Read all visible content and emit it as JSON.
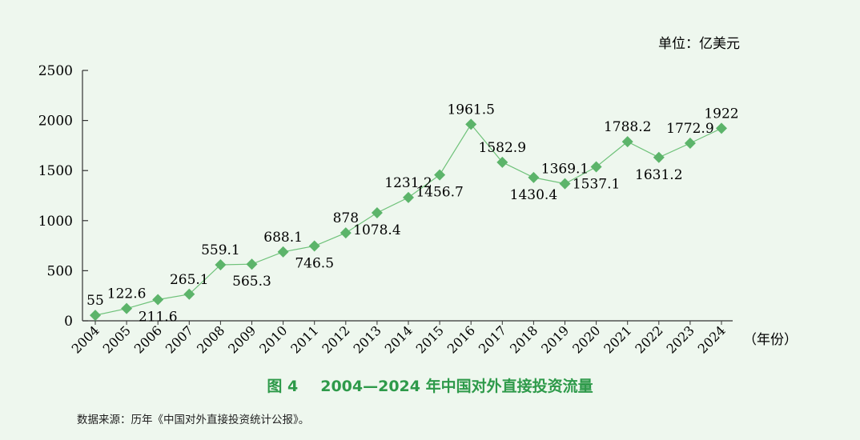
{
  "caption": {
    "figure_number": "图 4",
    "title": "2004—2024 年中国对外直接投资流量"
  },
  "source": "数据来源：历年《中国对外直接投资统计公报》。",
  "chart_data": {
    "type": "line",
    "unit_label": "单位：亿美元",
    "x_axis_unit": "（年份）",
    "categories": [
      "2004",
      "2005",
      "2006",
      "2007",
      "2008",
      "2009",
      "2010",
      "2011",
      "2012",
      "2013",
      "2014",
      "2015",
      "2016",
      "2017",
      "2018",
      "2019",
      "2020",
      "2021",
      "2022",
      "2023",
      "2024"
    ],
    "values": [
      55,
      122.6,
      211.6,
      265.1,
      559.1,
      565.3,
      688.1,
      746.5,
      878,
      1078.4,
      1231.2,
      1456.7,
      1961.5,
      1582.9,
      1430.4,
      1369.1,
      1537.1,
      1788.2,
      1631.2,
      1772.9,
      1922
    ],
    "data_labels": [
      "55",
      "122.6",
      "211.6",
      "265.1",
      "559.1",
      "565.3",
      "688.1",
      "746.5",
      "878",
      "1078.4",
      "1231.2",
      "1456.7",
      "1961.5",
      "1582.9",
      "1430.4",
      "1369.1",
      "1537.1",
      "1788.2",
      "1631.2",
      "1772.9",
      "1922"
    ],
    "label_positions": [
      "above",
      "above",
      "below",
      "above",
      "above",
      "below",
      "above",
      "below",
      "above",
      "below",
      "above",
      "below",
      "above",
      "above",
      "below",
      "above",
      "below",
      "above",
      "below",
      "above",
      "above"
    ],
    "y_ticks": [
      0,
      500,
      1000,
      1500,
      2000,
      2500
    ],
    "ylim": [
      0,
      2500
    ],
    "grid": false,
    "colors": {
      "line": "#6fc27a",
      "marker": "#5cb46a",
      "axis": "#333333"
    }
  }
}
